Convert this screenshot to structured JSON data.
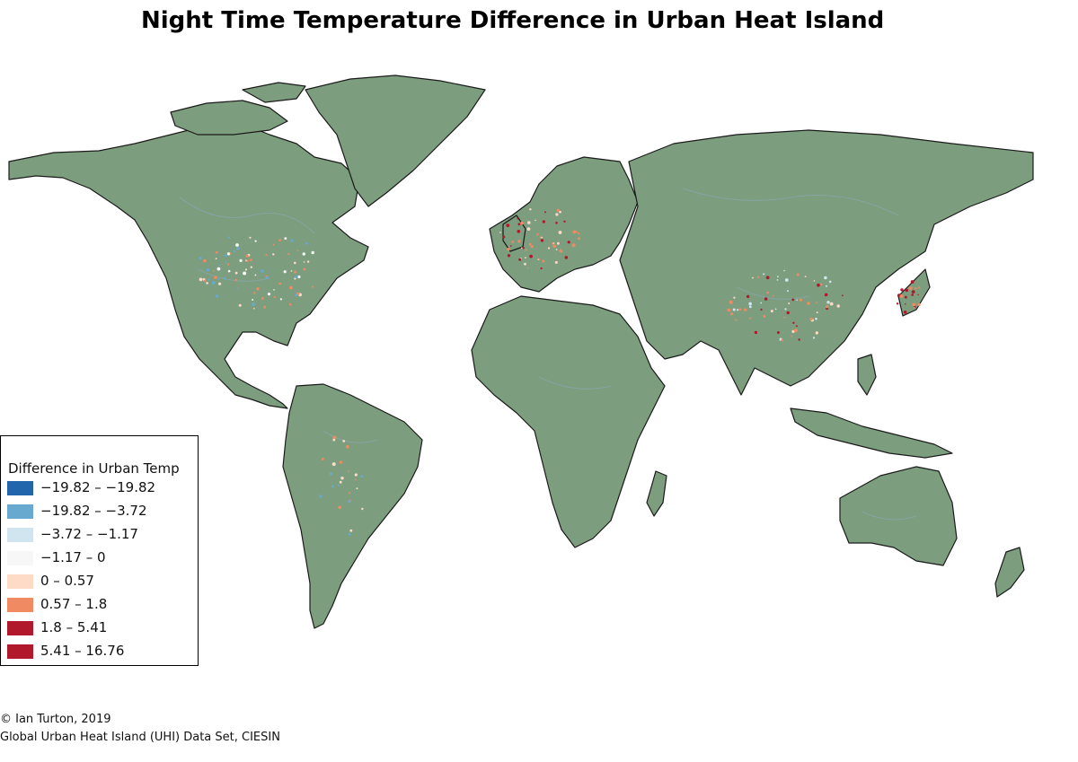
{
  "map": {
    "title": "Night Time Temperature Difference in Urban Heat Island",
    "land_color": "#7d9e7e",
    "border_color": "#1a1a1a",
    "river_color": "#8aa9c2"
  },
  "legend": {
    "title": "Difference in Urban Temp",
    "items": [
      {
        "label": "−19.82 – −19.82",
        "color": "#2166ac"
      },
      {
        "label": "−19.82 – −3.72",
        "color": "#67a9cf"
      },
      {
        "label": "−3.72 – −1.17",
        "color": "#d1e5f0"
      },
      {
        "label": "−1.17 – 0",
        "color": "#f7f7f7"
      },
      {
        "label": "0 – 0.57",
        "color": "#fddbc7"
      },
      {
        "label": "0.57 – 1.8",
        "color": "#ef8a62"
      },
      {
        "label": "1.8 – 5.41",
        "color": "#b2182b"
      },
      {
        "label": "5.41 – 16.76",
        "color": "#b2182b"
      }
    ]
  },
  "credits": {
    "line1": "© Ian Turton, 2019",
    "line2": "Global Urban Heat Island (UHI) Data Set, CIESIN"
  }
}
